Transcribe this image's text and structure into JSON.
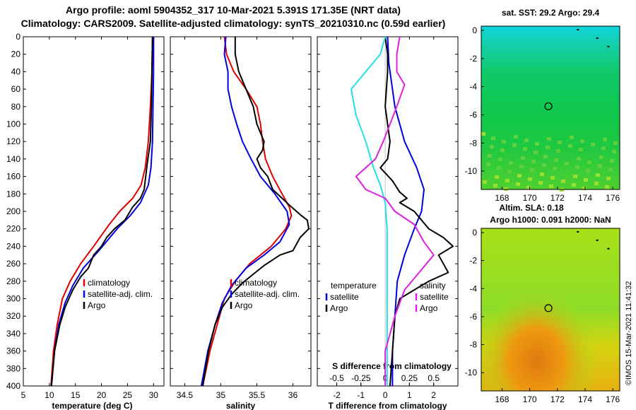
{
  "header": {
    "title_line1": "Argo profile: aoml 5904352_317 10-Mar-2021 5.391S 171.35E (NRT data)",
    "title_line2": "Climatology: CARS2009. Satellite-adjusted climatology: synTS_20210310.nc (0.59d earlier)"
  },
  "footer": {
    "stamp": "©IMOS 15-Mar-2021 11:41:32"
  },
  "colors": {
    "climatology": "#e00000",
    "satellite": "#0000e0",
    "argo": "#000000",
    "cyan": "#22e0e6",
    "magenta": "#e020e0"
  },
  "chart_data": [
    {
      "id": "temperature",
      "type": "line",
      "xlabel": "temperature (deg C)",
      "ylabel": "",
      "xlim": [
        5,
        32
      ],
      "ylim": [
        400,
        0
      ],
      "xticks": [
        5,
        10,
        15,
        20,
        25,
        30
      ],
      "yticks": [
        0,
        20,
        40,
        60,
        80,
        100,
        120,
        140,
        160,
        180,
        200,
        220,
        240,
        260,
        280,
        300,
        320,
        340,
        360,
        380,
        400
      ],
      "legend": [
        "climatology",
        "satellite-adj. clim.",
        "Argo"
      ],
      "series": [
        {
          "name": "climatology",
          "color": "#e00000",
          "points": [
            [
              29.8,
              0
            ],
            [
              29.7,
              40
            ],
            [
              29.4,
              80
            ],
            [
              29.0,
              120
            ],
            [
              28.4,
              150
            ],
            [
              27.6,
              170
            ],
            [
              26.0,
              185
            ],
            [
              23.5,
              200
            ],
            [
              21.5,
              215
            ],
            [
              18.5,
              240
            ],
            [
              16.0,
              260
            ],
            [
              14.0,
              280
            ],
            [
              12.5,
              300
            ],
            [
              11.5,
              330
            ],
            [
              10.8,
              360
            ],
            [
              10.3,
              400
            ]
          ]
        },
        {
          "name": "satellite-adj. clim.",
          "color": "#0000e0",
          "points": [
            [
              30.0,
              0
            ],
            [
              30.0,
              40
            ],
            [
              29.9,
              80
            ],
            [
              29.8,
              120
            ],
            [
              29.5,
              150
            ],
            [
              29.0,
              170
            ],
            [
              27.5,
              190
            ],
            [
              25.5,
              205
            ],
            [
              23.0,
              220
            ],
            [
              19.5,
              245
            ],
            [
              16.5,
              265
            ],
            [
              14.5,
              285
            ],
            [
              13.0,
              305
            ],
            [
              11.8,
              330
            ],
            [
              11.0,
              360
            ],
            [
              10.4,
              400
            ]
          ]
        },
        {
          "name": "Argo",
          "color": "#000000",
          "points": [
            [
              29.8,
              0
            ],
            [
              29.7,
              40
            ],
            [
              29.6,
              80
            ],
            [
              29.4,
              120
            ],
            [
              28.8,
              145
            ],
            [
              28.5,
              160
            ],
            [
              28.2,
              175
            ],
            [
              27.5,
              185
            ],
            [
              26.0,
              195
            ],
            [
              24.5,
              210
            ],
            [
              22.5,
              220
            ],
            [
              21.0,
              230
            ],
            [
              20.0,
              240
            ],
            [
              18.5,
              250
            ],
            [
              17.5,
              265
            ],
            [
              16.0,
              275
            ],
            [
              14.5,
              290
            ],
            [
              13.0,
              310
            ],
            [
              12.0,
              330
            ],
            [
              11.0,
              360
            ],
            [
              10.4,
              400
            ]
          ]
        }
      ]
    },
    {
      "id": "salinity",
      "type": "line",
      "xlabel": "salinity",
      "ylabel": "",
      "xlim": [
        34.3,
        36.25
      ],
      "ylim": [
        400,
        0
      ],
      "xticks": [
        34.5,
        35,
        35.5,
        36
      ],
      "xtick_labels": [
        "34.5",
        "35",
        "35.5",
        "36"
      ],
      "legend": [
        "climatology",
        "satellite-adj. clim.",
        "Argo"
      ],
      "series": [
        {
          "name": "climatology",
          "color": "#e00000",
          "points": [
            [
              35.05,
              0
            ],
            [
              35.08,
              20
            ],
            [
              35.18,
              40
            ],
            [
              35.35,
              60
            ],
            [
              35.5,
              80
            ],
            [
              35.55,
              100
            ],
            [
              35.58,
              120
            ],
            [
              35.62,
              140
            ],
            [
              35.72,
              160
            ],
            [
              35.85,
              180
            ],
            [
              35.95,
              195
            ],
            [
              35.98,
              205
            ],
            [
              35.9,
              220
            ],
            [
              35.7,
              240
            ],
            [
              35.4,
              260
            ],
            [
              35.2,
              280
            ],
            [
              35.05,
              300
            ],
            [
              34.95,
              330
            ],
            [
              34.85,
              360
            ],
            [
              34.75,
              400
            ]
          ]
        },
        {
          "name": "satellite-adj. clim.",
          "color": "#0000e0",
          "points": [
            [
              35.07,
              0
            ],
            [
              35.05,
              20
            ],
            [
              35.1,
              40
            ],
            [
              35.1,
              60
            ],
            [
              35.15,
              80
            ],
            [
              35.22,
              100
            ],
            [
              35.3,
              120
            ],
            [
              35.42,
              140
            ],
            [
              35.55,
              160
            ],
            [
              35.75,
              180
            ],
            [
              35.92,
              200
            ],
            [
              35.95,
              215
            ],
            [
              35.82,
              235
            ],
            [
              35.6,
              250
            ],
            [
              35.35,
              265
            ],
            [
              35.15,
              285
            ],
            [
              35.02,
              305
            ],
            [
              34.92,
              330
            ],
            [
              34.82,
              360
            ],
            [
              34.73,
              400
            ]
          ]
        },
        {
          "name": "Argo",
          "color": "#000000",
          "points": [
            [
              35.2,
              0
            ],
            [
              35.2,
              20
            ],
            [
              35.25,
              40
            ],
            [
              35.35,
              60
            ],
            [
              35.45,
              80
            ],
            [
              35.5,
              100
            ],
            [
              35.55,
              110
            ],
            [
              35.6,
              120
            ],
            [
              35.58,
              130
            ],
            [
              35.5,
              140
            ],
            [
              35.55,
              150
            ],
            [
              35.65,
              160
            ],
            [
              35.72,
              175
            ],
            [
              35.85,
              185
            ],
            [
              35.98,
              195
            ],
            [
              36.05,
              200
            ],
            [
              36.12,
              205
            ],
            [
              36.2,
              210
            ],
            [
              36.22,
              220
            ],
            [
              36.1,
              230
            ],
            [
              36.0,
              245
            ],
            [
              35.82,
              250
            ],
            [
              35.6,
              262
            ],
            [
              35.45,
              272
            ],
            [
              35.3,
              282
            ],
            [
              35.15,
              295
            ],
            [
              35.02,
              310
            ],
            [
              34.92,
              330
            ],
            [
              34.83,
              360
            ],
            [
              34.75,
              400
            ]
          ]
        }
      ]
    },
    {
      "id": "difference",
      "type": "line",
      "xlabel": "T difference from climatology",
      "top_label": "S difference from climatology",
      "xlim": [
        -2.8,
        3.0
      ],
      "ylim": [
        400,
        0
      ],
      "xticks": [
        -2,
        -1,
        0,
        1,
        2
      ],
      "xtick_labels": [
        "-2",
        "-1",
        "0",
        "1",
        "2"
      ],
      "sticks": [
        -0.5,
        -0.25,
        0,
        0.25,
        0.5
      ],
      "stick_labels": [
        "-0.5",
        "-0.25",
        "0",
        "0.25",
        "0.5"
      ],
      "s_xlim": [
        -0.7,
        0.75
      ],
      "legend_left_title": "temperature",
      "legend_right_title": "salinity",
      "legend": [
        "satellite",
        "Argo"
      ],
      "series": [
        {
          "name": "T satellite",
          "color": "#0000e0",
          "axis": "T",
          "points": [
            [
              0.1,
              0
            ],
            [
              0.15,
              30
            ],
            [
              0.4,
              80
            ],
            [
              0.8,
              120
            ],
            [
              1.3,
              150
            ],
            [
              1.6,
              175
            ],
            [
              1.5,
              200
            ],
            [
              1.2,
              220
            ],
            [
              0.8,
              250
            ],
            [
              0.5,
              280
            ],
            [
              0.4,
              320
            ],
            [
              0.3,
              360
            ],
            [
              0.3,
              400
            ]
          ]
        },
        {
          "name": "T Argo",
          "color": "#000000",
          "axis": "T",
          "points": [
            [
              0.0,
              0
            ],
            [
              0.1,
              20
            ],
            [
              0.1,
              40
            ],
            [
              0.0,
              80
            ],
            [
              0.2,
              120
            ],
            [
              0.1,
              140
            ],
            [
              -0.2,
              150
            ],
            [
              0.3,
              165
            ],
            [
              0.6,
              178
            ],
            [
              0.9,
              185
            ],
            [
              0.6,
              190
            ],
            [
              1.2,
              200
            ],
            [
              1.5,
              210
            ],
            [
              1.8,
              220
            ],
            [
              2.4,
              230
            ],
            [
              2.8,
              240
            ],
            [
              2.2,
              250
            ],
            [
              2.6,
              270
            ],
            [
              1.8,
              280
            ],
            [
              1.2,
              290
            ],
            [
              0.6,
              300
            ],
            [
              0.4,
              320
            ],
            [
              0.3,
              360
            ],
            [
              0.2,
              400
            ]
          ]
        },
        {
          "name": "S satellite",
          "color": "#22e0e6",
          "axis": "S",
          "points": [
            [
              0.0,
              0
            ],
            [
              -0.05,
              20
            ],
            [
              -0.2,
              40
            ],
            [
              -0.35,
              60
            ],
            [
              -0.3,
              90
            ],
            [
              -0.2,
              120
            ],
            [
              -0.12,
              150
            ],
            [
              -0.05,
              170
            ],
            [
              0.0,
              190
            ],
            [
              0.02,
              220
            ],
            [
              0.02,
              270
            ],
            [
              0.02,
              330
            ],
            [
              0.02,
              400
            ]
          ]
        },
        {
          "name": "S Argo",
          "color": "#e020e0",
          "axis": "S",
          "points": [
            [
              0.15,
              0
            ],
            [
              0.12,
              20
            ],
            [
              0.12,
              40
            ],
            [
              0.2,
              55
            ],
            [
              0.12,
              80
            ],
            [
              0.05,
              100
            ],
            [
              -0.02,
              120
            ],
            [
              -0.1,
              140
            ],
            [
              -0.3,
              160
            ],
            [
              -0.2,
              175
            ],
            [
              0.0,
              185
            ],
            [
              0.1,
              200
            ],
            [
              0.3,
              215
            ],
            [
              0.4,
              235
            ],
            [
              0.5,
              250
            ],
            [
              0.35,
              270
            ],
            [
              0.2,
              290
            ],
            [
              0.1,
              320
            ],
            [
              0.0,
              360
            ],
            [
              0.0,
              400
            ]
          ]
        }
      ]
    },
    {
      "id": "sst_map",
      "type": "heatmap",
      "title": "sat. SST: 29.2 Argo: 29.4",
      "xlim": [
        166.5,
        176.5
      ],
      "ylim": [
        -11.3,
        0.3
      ],
      "xticks": [
        168,
        170,
        172,
        174,
        176
      ],
      "xtick_labels": [
        "168",
        "170",
        "172",
        "174",
        "176"
      ],
      "yticks": [
        0,
        -2,
        -4,
        -6,
        -8,
        -10
      ],
      "ytick_labels": [
        "0",
        "-2",
        "-4",
        "-6",
        "-8",
        "-10"
      ],
      "marker": [
        171.35,
        -5.391
      ]
    },
    {
      "id": "sla_map",
      "type": "heatmap",
      "title": "Altim. SLA: 0.18",
      "subtitle": "Argo h1000: 0.091 h2000: NaN",
      "xlim": [
        166.5,
        176.5
      ],
      "ylim": [
        -11.3,
        0.3
      ],
      "xticks": [
        168,
        170,
        172,
        174,
        176
      ],
      "xtick_labels": [
        "168",
        "170",
        "172",
        "174",
        "176"
      ],
      "yticks": [
        0,
        -2,
        -4,
        -6,
        -8,
        -10
      ],
      "ytick_labels": [
        "0",
        "-2",
        "-4",
        "-6",
        "-8",
        "-10"
      ],
      "marker": [
        171.35,
        -5.391
      ]
    }
  ]
}
